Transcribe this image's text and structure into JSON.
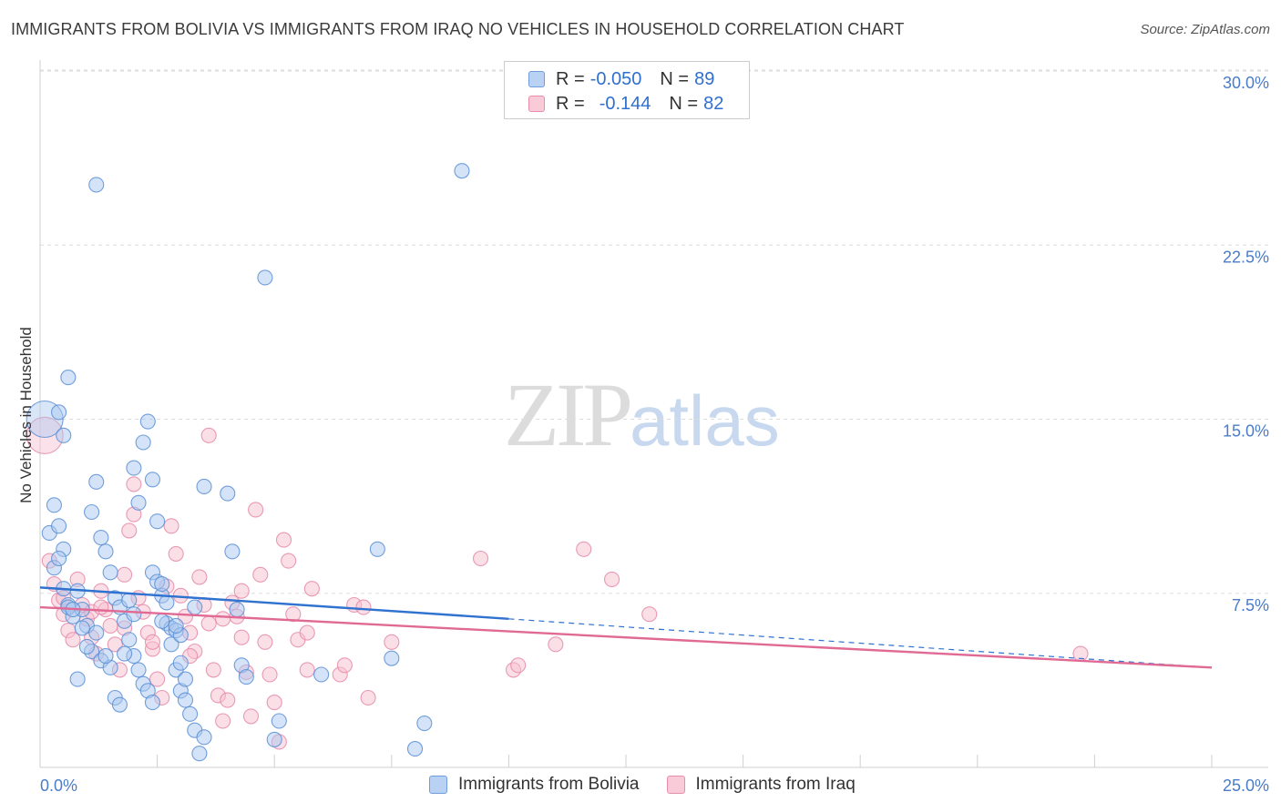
{
  "header": {
    "title": "IMMIGRANTS FROM BOLIVIA VS IMMIGRANTS FROM IRAQ NO VEHICLES IN HOUSEHOLD CORRELATION CHART",
    "source": "Source: ZipAtlas.com"
  },
  "watermark": {
    "zip": "ZIP",
    "atlas": "atlas"
  },
  "legend": {
    "rows": [
      {
        "r_label": "R =",
        "r_value": "-0.050",
        "n_label": "N =",
        "n_value": "89",
        "color": "#8fb4e8"
      },
      {
        "r_label": "R =",
        "r_value": "-0.144",
        "n_label": "N =",
        "n_value": "82",
        "color": "#f4a9c0"
      }
    ]
  },
  "colors": {
    "bolivia_fill": "#aac8f0",
    "bolivia_stroke": "#5b8fd6",
    "bolivia_line": "#2f72cf",
    "iraq_fill": "#f7bfd0",
    "iraq_stroke": "#e58aa8",
    "iraq_line": "#e06a94",
    "grid": "#dddddd",
    "tick": "#4a7cc9"
  },
  "chart_data": {
    "type": "scatter",
    "title": "IMMIGRANTS FROM BOLIVIA VS IMMIGRANTS FROM IRAQ NO VEHICLES IN HOUSEHOLD CORRELATION CHART",
    "xlabel": "",
    "ylabel": "No Vehicles in Household",
    "xlim": [
      0,
      25
    ],
    "ylim": [
      0,
      30
    ],
    "x_tick_labels": [
      "0.0%",
      "25.0%"
    ],
    "y_ticks": [
      7.5,
      15.0,
      22.5,
      30.0
    ],
    "y_tick_labels": [
      "7.5%",
      "15.0%",
      "22.5%",
      "30.0%"
    ],
    "grid": true,
    "legend_position": "bottom-center",
    "series": [
      {
        "name": "Immigrants from Bolivia",
        "r": -0.05,
        "n": 89,
        "trend": {
          "x": [
            0,
            10,
            25
          ],
          "y": [
            7.75,
            6.4,
            4.3
          ],
          "solid_until": 10
        },
        "points": [
          [
            0.1,
            15.0
          ],
          [
            0.2,
            10.1
          ],
          [
            0.3,
            11.3
          ],
          [
            0.4,
            10.4
          ],
          [
            0.5,
            9.4
          ],
          [
            0.3,
            8.6
          ],
          [
            0.6,
            7.0
          ],
          [
            0.7,
            6.5
          ],
          [
            0.8,
            7.6
          ],
          [
            0.9,
            6.8
          ],
          [
            1.0,
            6.1
          ],
          [
            1.1,
            5.0
          ],
          [
            1.2,
            5.8
          ],
          [
            1.3,
            4.6
          ],
          [
            0.4,
            15.3
          ],
          [
            0.5,
            14.3
          ],
          [
            0.6,
            16.8
          ],
          [
            1.1,
            11.0
          ],
          [
            1.2,
            12.3
          ],
          [
            1.3,
            9.9
          ],
          [
            1.4,
            9.3
          ],
          [
            1.5,
            8.4
          ],
          [
            1.6,
            7.3
          ],
          [
            1.7,
            6.9
          ],
          [
            1.8,
            6.3
          ],
          [
            1.9,
            5.5
          ],
          [
            2.0,
            4.8
          ],
          [
            2.1,
            4.2
          ],
          [
            2.2,
            3.6
          ],
          [
            2.3,
            3.3
          ],
          [
            2.4,
            2.8
          ],
          [
            1.2,
            25.1
          ],
          [
            2.0,
            12.9
          ],
          [
            2.1,
            11.4
          ],
          [
            2.4,
            8.4
          ],
          [
            2.5,
            8.0
          ],
          [
            2.6,
            7.4
          ],
          [
            2.7,
            6.2
          ],
          [
            2.8,
            5.3
          ],
          [
            2.9,
            4.2
          ],
          [
            3.0,
            3.3
          ],
          [
            3.1,
            2.9
          ],
          [
            2.2,
            14.0
          ],
          [
            2.3,
            14.9
          ],
          [
            2.4,
            12.4
          ],
          [
            2.5,
            10.6
          ],
          [
            2.6,
            7.9
          ],
          [
            2.7,
            7.1
          ],
          [
            2.8,
            6.0
          ],
          [
            2.9,
            5.9
          ],
          [
            3.0,
            4.5
          ],
          [
            3.1,
            3.8
          ],
          [
            3.2,
            2.3
          ],
          [
            3.3,
            1.6
          ],
          [
            3.4,
            0.6
          ],
          [
            3.5,
            1.3
          ],
          [
            3.5,
            12.1
          ],
          [
            4.0,
            11.8
          ],
          [
            4.1,
            9.3
          ],
          [
            4.2,
            6.8
          ],
          [
            4.3,
            4.4
          ],
          [
            4.4,
            3.9
          ],
          [
            5.0,
            1.2
          ],
          [
            5.1,
            2.0
          ],
          [
            4.8,
            21.1
          ],
          [
            8.0,
            0.8
          ],
          [
            8.2,
            1.9
          ],
          [
            7.5,
            4.7
          ],
          [
            6.0,
            4.0
          ],
          [
            7.2,
            9.4
          ],
          [
            0.4,
            9.0
          ],
          [
            0.5,
            7.7
          ],
          [
            0.6,
            6.9
          ],
          [
            0.7,
            6.8
          ],
          [
            0.9,
            6.0
          ],
          [
            1.0,
            5.2
          ],
          [
            1.5,
            4.3
          ],
          [
            1.6,
            3.0
          ],
          [
            1.7,
            2.7
          ],
          [
            1.8,
            4.9
          ],
          [
            1.9,
            7.2
          ],
          [
            2.0,
            6.6
          ],
          [
            0.8,
            3.8
          ],
          [
            1.4,
            4.8
          ],
          [
            2.6,
            6.3
          ],
          [
            3.3,
            6.9
          ],
          [
            3.0,
            5.7
          ],
          [
            9.0,
            25.7
          ],
          [
            2.9,
            6.1
          ]
        ]
      },
      {
        "name": "Immigrants from Iraq",
        "r": -0.144,
        "n": 82,
        "trend": {
          "x": [
            0,
            25
          ],
          "y": [
            6.9,
            4.3
          ]
        },
        "points": [
          [
            0.1,
            14.3
          ],
          [
            0.2,
            8.9
          ],
          [
            0.3,
            7.9
          ],
          [
            0.4,
            7.2
          ],
          [
            0.5,
            6.6
          ],
          [
            0.6,
            5.9
          ],
          [
            0.7,
            5.5
          ],
          [
            0.8,
            8.1
          ],
          [
            0.9,
            7.0
          ],
          [
            1.0,
            6.4
          ],
          [
            1.1,
            5.6
          ],
          [
            1.2,
            4.9
          ],
          [
            1.3,
            7.6
          ],
          [
            1.4,
            6.8
          ],
          [
            1.5,
            6.1
          ],
          [
            1.6,
            5.3
          ],
          [
            1.7,
            4.2
          ],
          [
            1.8,
            8.3
          ],
          [
            1.9,
            10.2
          ],
          [
            2.0,
            10.9
          ],
          [
            2.1,
            7.3
          ],
          [
            2.2,
            6.7
          ],
          [
            2.3,
            5.8
          ],
          [
            2.4,
            5.1
          ],
          [
            2.5,
            3.8
          ],
          [
            2.6,
            3.0
          ],
          [
            2.7,
            7.8
          ],
          [
            2.8,
            10.4
          ],
          [
            2.9,
            9.2
          ],
          [
            3.0,
            7.4
          ],
          [
            3.1,
            6.5
          ],
          [
            3.2,
            5.8
          ],
          [
            3.3,
            5.0
          ],
          [
            3.4,
            8.2
          ],
          [
            3.5,
            7.0
          ],
          [
            3.6,
            6.2
          ],
          [
            3.7,
            4.2
          ],
          [
            3.8,
            3.1
          ],
          [
            3.9,
            2.0
          ],
          [
            4.0,
            2.9
          ],
          [
            4.1,
            7.1
          ],
          [
            4.2,
            6.5
          ],
          [
            4.3,
            5.6
          ],
          [
            4.4,
            4.1
          ],
          [
            4.5,
            2.2
          ],
          [
            4.6,
            11.1
          ],
          [
            4.7,
            8.3
          ],
          [
            4.8,
            5.4
          ],
          [
            4.9,
            4.0
          ],
          [
            5.0,
            2.8
          ],
          [
            5.1,
            1.1
          ],
          [
            5.2,
            9.8
          ],
          [
            5.3,
            8.9
          ],
          [
            5.4,
            6.6
          ],
          [
            5.5,
            5.5
          ],
          [
            5.7,
            4.2
          ],
          [
            5.8,
            7.7
          ],
          [
            6.4,
            4.0
          ],
          [
            6.5,
            4.4
          ],
          [
            6.7,
            7.0
          ],
          [
            7.0,
            3.0
          ],
          [
            7.5,
            5.4
          ],
          [
            9.4,
            9.0
          ],
          [
            10.1,
            4.2
          ],
          [
            10.2,
            4.4
          ],
          [
            11.0,
            5.3
          ],
          [
            11.6,
            9.4
          ],
          [
            12.2,
            8.1
          ],
          [
            13.0,
            6.6
          ],
          [
            22.2,
            4.9
          ],
          [
            3.6,
            14.3
          ],
          [
            2.0,
            12.2
          ],
          [
            1.1,
            6.7
          ],
          [
            0.5,
            7.3
          ],
          [
            1.3,
            6.9
          ],
          [
            1.8,
            6.0
          ],
          [
            2.4,
            5.4
          ],
          [
            3.9,
            6.4
          ],
          [
            4.3,
            7.6
          ],
          [
            5.7,
            5.8
          ],
          [
            3.2,
            4.8
          ],
          [
            6.9,
            6.9
          ]
        ]
      }
    ]
  },
  "bottom_legend": {
    "items": [
      {
        "label": "Immigrants from Bolivia"
      },
      {
        "label": "Immigrants from Iraq"
      }
    ]
  }
}
